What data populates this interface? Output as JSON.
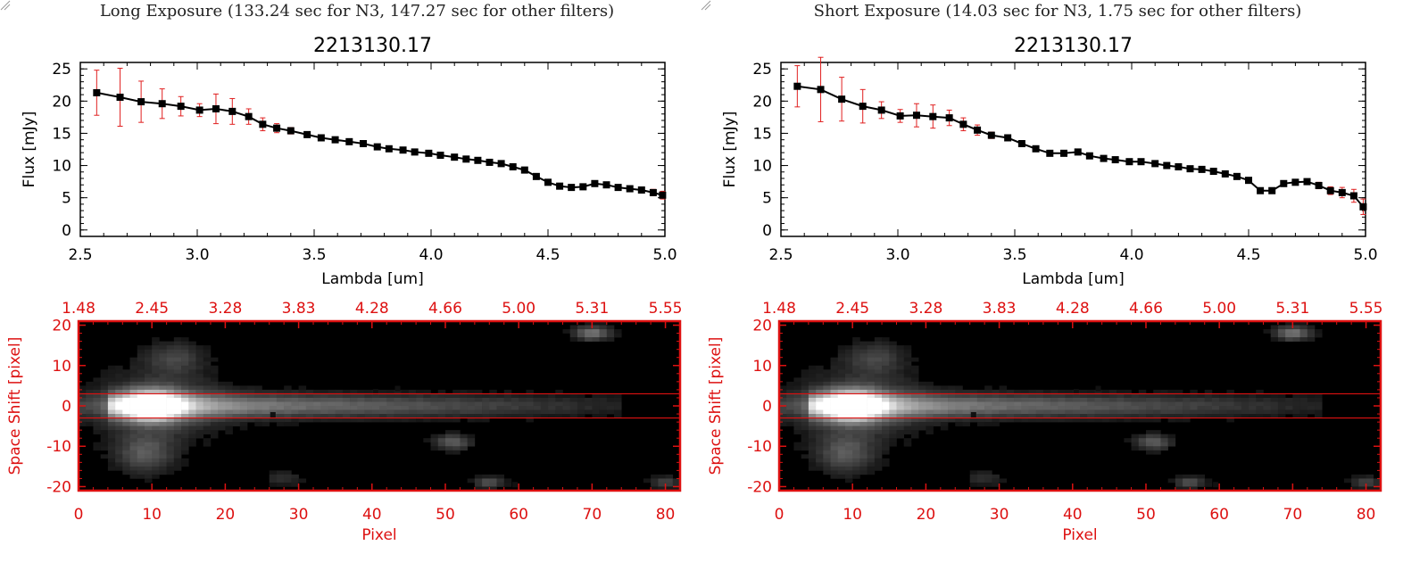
{
  "panels": [
    {
      "exposure_title": "Long Exposure (133.24 sec for N3, 147.27 sec for other filters)",
      "spectrum": {
        "type": "line",
        "title": "2213130.17",
        "xlabel": "Lambda [um]",
        "ylabel": "Flux [mJy]",
        "xlim": [
          2.5,
          5.0
        ],
        "ylim": [
          -1,
          26
        ],
        "x_ticks": [
          "2.5",
          "3.0",
          "3.5",
          "4.0",
          "4.5",
          "5.0"
        ],
        "y_ticks": [
          "0",
          "5",
          "10",
          "15",
          "20",
          "25"
        ],
        "line_color": "#000000",
        "errorbar_color": "#e02020",
        "x": [
          2.57,
          2.67,
          2.76,
          2.85,
          2.93,
          3.01,
          3.08,
          3.15,
          3.22,
          3.28,
          3.34,
          3.4,
          3.47,
          3.53,
          3.59,
          3.65,
          3.71,
          3.77,
          3.82,
          3.88,
          3.93,
          3.99,
          4.04,
          4.1,
          4.15,
          4.2,
          4.25,
          4.3,
          4.35,
          4.4,
          4.45,
          4.5,
          4.55,
          4.6,
          4.65,
          4.7,
          4.75,
          4.8,
          4.85,
          4.9,
          4.95,
          4.99
        ],
        "y": [
          21.3,
          20.6,
          19.9,
          19.6,
          19.2,
          18.6,
          18.8,
          18.4,
          17.6,
          16.4,
          15.8,
          15.4,
          14.8,
          14.3,
          14.0,
          13.7,
          13.4,
          12.9,
          12.6,
          12.4,
          12.1,
          11.9,
          11.6,
          11.3,
          11.0,
          10.8,
          10.5,
          10.3,
          9.8,
          9.3,
          8.3,
          7.4,
          6.8,
          6.6,
          6.7,
          7.2,
          7.0,
          6.6,
          6.4,
          6.2,
          5.8,
          5.4
        ],
        "err": [
          3.5,
          4.5,
          3.2,
          2.3,
          1.5,
          1.0,
          2.3,
          2.0,
          1.2,
          1.0,
          0.7,
          0.5,
          0.4,
          0.3,
          0.3,
          0.3,
          0.3,
          0.3,
          0.3,
          0.3,
          0.3,
          0.3,
          0.3,
          0.3,
          0.3,
          0.3,
          0.3,
          0.3,
          0.3,
          0.3,
          0.3,
          0.3,
          0.3,
          0.3,
          0.3,
          0.4,
          0.4,
          0.4,
          0.4,
          0.4,
          0.5,
          0.6
        ]
      },
      "image": {
        "type": "heatmap",
        "xlabel": "Pixel",
        "ylabel": "Space Shift [pixel]",
        "xlim": [
          0,
          82
        ],
        "ylim": [
          -21,
          21
        ],
        "x_ticks": [
          "0",
          "10",
          "20",
          "30",
          "40",
          "50",
          "60",
          "70",
          "80"
        ],
        "y_ticks": [
          "-20",
          "-10",
          "0",
          "10",
          "20"
        ],
        "top_axis_ticks": [
          "1.48",
          "2.45",
          "3.28",
          "3.83",
          "4.28",
          "4.66",
          "5.00",
          "5.31",
          "5.55"
        ],
        "aperture_y": [
          -3,
          3
        ],
        "axis_color": "#dd1111"
      }
    },
    {
      "exposure_title": "Short Exposure (14.03 sec for N3, 1.75 sec for other filters)",
      "spectrum": {
        "type": "line",
        "title": "2213130.17",
        "xlabel": "Lambda [um]",
        "ylabel": "Flux [mJy]",
        "xlim": [
          2.5,
          5.0
        ],
        "ylim": [
          -1,
          26
        ],
        "x_ticks": [
          "2.5",
          "3.0",
          "3.5",
          "4.0",
          "4.5",
          "5.0"
        ],
        "y_ticks": [
          "0",
          "5",
          "10",
          "15",
          "20",
          "25"
        ],
        "line_color": "#000000",
        "errorbar_color": "#e02020",
        "x": [
          2.57,
          2.67,
          2.76,
          2.85,
          2.93,
          3.01,
          3.08,
          3.15,
          3.22,
          3.28,
          3.34,
          3.4,
          3.47,
          3.53,
          3.59,
          3.65,
          3.71,
          3.77,
          3.82,
          3.88,
          3.93,
          3.99,
          4.04,
          4.1,
          4.15,
          4.2,
          4.25,
          4.3,
          4.35,
          4.4,
          4.45,
          4.5,
          4.55,
          4.6,
          4.65,
          4.7,
          4.75,
          4.8,
          4.85,
          4.9,
          4.95,
          4.99
        ],
        "y": [
          22.3,
          21.8,
          20.3,
          19.2,
          18.6,
          17.7,
          17.8,
          17.6,
          17.4,
          16.4,
          15.5,
          14.7,
          14.3,
          13.4,
          12.6,
          11.9,
          11.9,
          12.1,
          11.5,
          11.1,
          10.9,
          10.6,
          10.6,
          10.3,
          10.0,
          9.8,
          9.5,
          9.4,
          9.1,
          8.7,
          8.3,
          7.7,
          6.1,
          6.1,
          7.2,
          7.4,
          7.5,
          6.9,
          6.1,
          5.8,
          5.3,
          3.6
        ],
        "err": [
          3.2,
          5.0,
          3.4,
          2.6,
          1.3,
          1.0,
          1.8,
          1.8,
          1.2,
          1.0,
          0.8,
          0.5,
          0.4,
          0.4,
          0.4,
          0.3,
          0.3,
          0.3,
          0.3,
          0.3,
          0.3,
          0.3,
          0.3,
          0.3,
          0.3,
          0.3,
          0.3,
          0.3,
          0.3,
          0.3,
          0.3,
          0.3,
          0.3,
          0.3,
          0.3,
          0.4,
          0.4,
          0.5,
          0.6,
          0.8,
          1.0,
          1.2
        ]
      },
      "image": {
        "type": "heatmap",
        "xlabel": "Pixel",
        "ylabel": "Space Shift [pixel]",
        "xlim": [
          0,
          82
        ],
        "ylim": [
          -21,
          21
        ],
        "x_ticks": [
          "0",
          "10",
          "20",
          "30",
          "40",
          "50",
          "60",
          "70",
          "80"
        ],
        "y_ticks": [
          "-20",
          "-10",
          "0",
          "10",
          "20"
        ],
        "top_axis_ticks": [
          "1.48",
          "2.45",
          "3.28",
          "3.83",
          "4.28",
          "4.66",
          "5.00",
          "5.31",
          "5.55"
        ],
        "aperture_y": [
          -3,
          3
        ],
        "axis_color": "#dd1111"
      }
    }
  ]
}
